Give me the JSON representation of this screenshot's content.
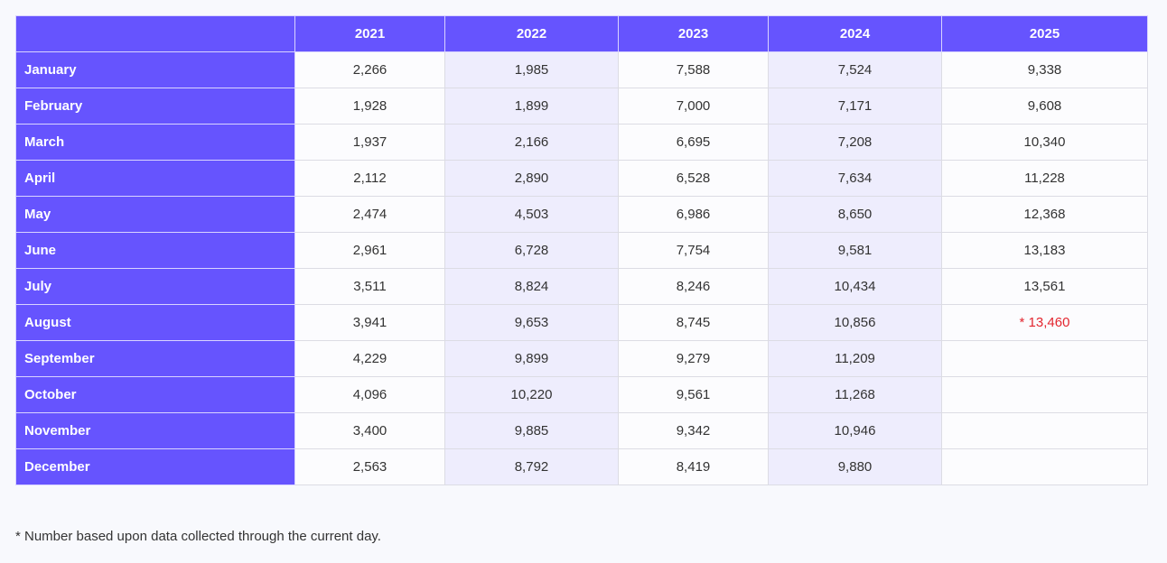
{
  "table": {
    "headers": [
      "",
      "2021",
      "2022",
      "2023",
      "2024",
      "2025"
    ],
    "rows": [
      {
        "month": "January",
        "values": [
          "2,266",
          "1,985",
          "7,588",
          "7,524",
          "9,338"
        ]
      },
      {
        "month": "February",
        "values": [
          "1,928",
          "1,899",
          "7,000",
          "7,171",
          "9,608"
        ]
      },
      {
        "month": "March",
        "values": [
          "1,937",
          "2,166",
          "6,695",
          "7,208",
          "10,340"
        ]
      },
      {
        "month": "April",
        "values": [
          "2,112",
          "2,890",
          "6,528",
          "7,634",
          "11,228"
        ]
      },
      {
        "month": "May",
        "values": [
          "2,474",
          "4,503",
          "6,986",
          "8,650",
          "12,368"
        ]
      },
      {
        "month": "June",
        "values": [
          "2,961",
          "6,728",
          "7,754",
          "9,581",
          "13,183"
        ]
      },
      {
        "month": "July",
        "values": [
          "3,511",
          "8,824",
          "8,246",
          "10,434",
          "13,561"
        ]
      },
      {
        "month": "August",
        "values": [
          "3,941",
          "9,653",
          "8,745",
          "10,856",
          "* 13,460"
        ]
      },
      {
        "month": "September",
        "values": [
          "4,229",
          "9,899",
          "9,279",
          "11,209",
          ""
        ]
      },
      {
        "month": "October",
        "values": [
          "4,096",
          "10,220",
          "9,561",
          "11,268",
          ""
        ]
      },
      {
        "month": "November",
        "values": [
          "3,400",
          "9,885",
          "9,342",
          "10,946",
          ""
        ]
      },
      {
        "month": "December",
        "values": [
          "2,563",
          "8,792",
          "8,419",
          "9,880",
          ""
        ]
      }
    ]
  },
  "footnote": "* Number based upon data collected through the current day.",
  "colors": {
    "header_bg": "#6654fe",
    "alt_column_bg": "#eeedfd",
    "flagged_value": "#e3262f"
  }
}
